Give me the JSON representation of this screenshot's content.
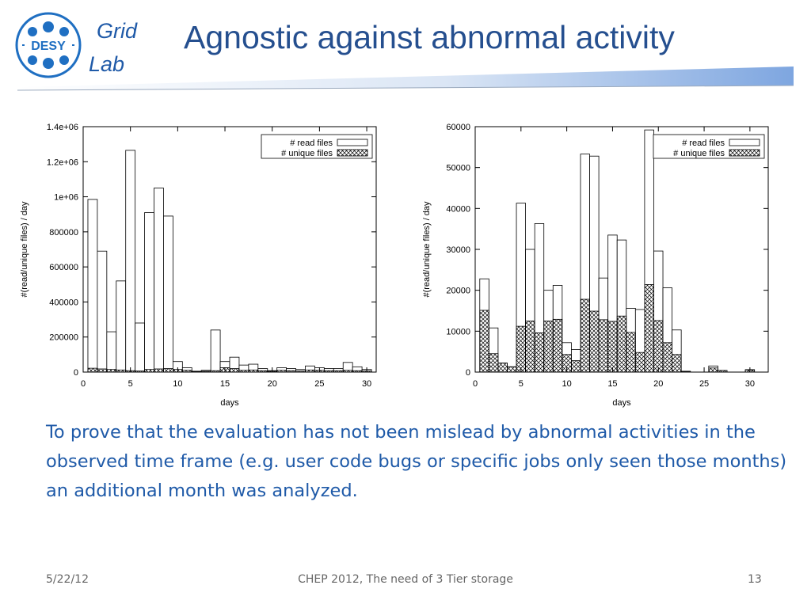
{
  "header": {
    "logo_text": "DESY",
    "grid_label": "Grid",
    "lab_label": "Lab",
    "title": "Agnostic against abnormal activity"
  },
  "colors": {
    "title": "#254f8f",
    "accent": "#1f5aa8",
    "bar_gradient_start": "#ffffff",
    "bar_gradient_end": "#8fb4e6"
  },
  "chart_data": [
    {
      "type": "bar",
      "xlabel": "days",
      "ylabel": "#(read/unique files) / day",
      "xlim": [
        0,
        31
      ],
      "ylim": [
        0,
        1400000
      ],
      "x_ticks": [
        0,
        5,
        10,
        15,
        20,
        25,
        30
      ],
      "y_ticks": [
        0,
        200000,
        400000,
        600000,
        800000,
        1000000,
        1200000,
        1400000
      ],
      "y_tick_labels": [
        "0",
        "200000",
        "400000",
        "600000",
        "800000",
        "1e+06",
        "1.2e+06",
        "1.4e+06"
      ],
      "legend_position": "top-right",
      "x": [
        1,
        2,
        3,
        4,
        5,
        6,
        7,
        8,
        9,
        10,
        11,
        12,
        13,
        14,
        15,
        16,
        17,
        18,
        19,
        20,
        21,
        22,
        23,
        24,
        25,
        26,
        27,
        28,
        29,
        30
      ],
      "series": [
        {
          "name": "# read files",
          "style": "open",
          "values": [
            985000,
            690000,
            230000,
            520000,
            1265000,
            280000,
            910000,
            1050000,
            890000,
            60000,
            25000,
            5000,
            10000,
            240000,
            60000,
            85000,
            40000,
            45000,
            20000,
            8000,
            25000,
            20000,
            15000,
            35000,
            25000,
            20000,
            20000,
            55000,
            30000,
            15000
          ]
        },
        {
          "name": "# unique files",
          "style": "crosshatch",
          "values": [
            22000,
            18000,
            15000,
            12000,
            8000,
            6000,
            15000,
            18000,
            20000,
            15000,
            10000,
            3000,
            5000,
            8000,
            25000,
            20000,
            10000,
            12000,
            8000,
            5000,
            10000,
            8000,
            6000,
            12000,
            10000,
            8000,
            8000,
            10000,
            8000,
            6000
          ]
        }
      ]
    },
    {
      "type": "bar",
      "xlabel": "days",
      "ylabel": "#(read/unique files) / day",
      "xlim": [
        0,
        32
      ],
      "ylim": [
        0,
        60000
      ],
      "x_ticks": [
        0,
        5,
        10,
        15,
        20,
        25,
        30
      ],
      "y_ticks": [
        0,
        10000,
        20000,
        30000,
        40000,
        50000,
        60000
      ],
      "y_tick_labels": [
        "0",
        "10000",
        "20000",
        "30000",
        "40000",
        "50000",
        "60000"
      ],
      "legend_position": "top-right",
      "x": [
        1,
        2,
        3,
        4,
        5,
        6,
        7,
        8,
        9,
        10,
        11,
        12,
        13,
        14,
        15,
        16,
        17,
        18,
        19,
        20,
        21,
        22,
        23,
        24,
        25,
        26,
        27,
        28,
        29,
        30
      ],
      "series": [
        {
          "name": "# read files",
          "style": "open",
          "values": [
            22800,
            10800,
            2200,
            1300,
            41300,
            30000,
            36300,
            20000,
            21200,
            7200,
            5500,
            53300,
            52800,
            23000,
            33500,
            32300,
            15600,
            15300,
            59200,
            29600,
            20600,
            10300,
            200,
            0,
            0,
            1500,
            400,
            0,
            0,
            600
          ]
        },
        {
          "name": "# unique files",
          "style": "crosshatch",
          "values": [
            15100,
            4500,
            2200,
            1300,
            11200,
            12500,
            9600,
            12500,
            12900,
            4300,
            2800,
            17800,
            14900,
            12800,
            12400,
            13700,
            9700,
            4800,
            21400,
            12600,
            7200,
            4300,
            200,
            0,
            0,
            1000,
            400,
            0,
            0,
            500
          ]
        }
      ]
    }
  ],
  "body": {
    "text": "To prove that the evaluation has not been mislead by abnormal activities in the observed time frame (e.g. user code bugs or specific jobs only seen those months) an additional month was analyzed."
  },
  "footer": {
    "date": "5/22/12",
    "center": "CHEP 2012, The need of 3 Tier storage",
    "page": "13"
  }
}
